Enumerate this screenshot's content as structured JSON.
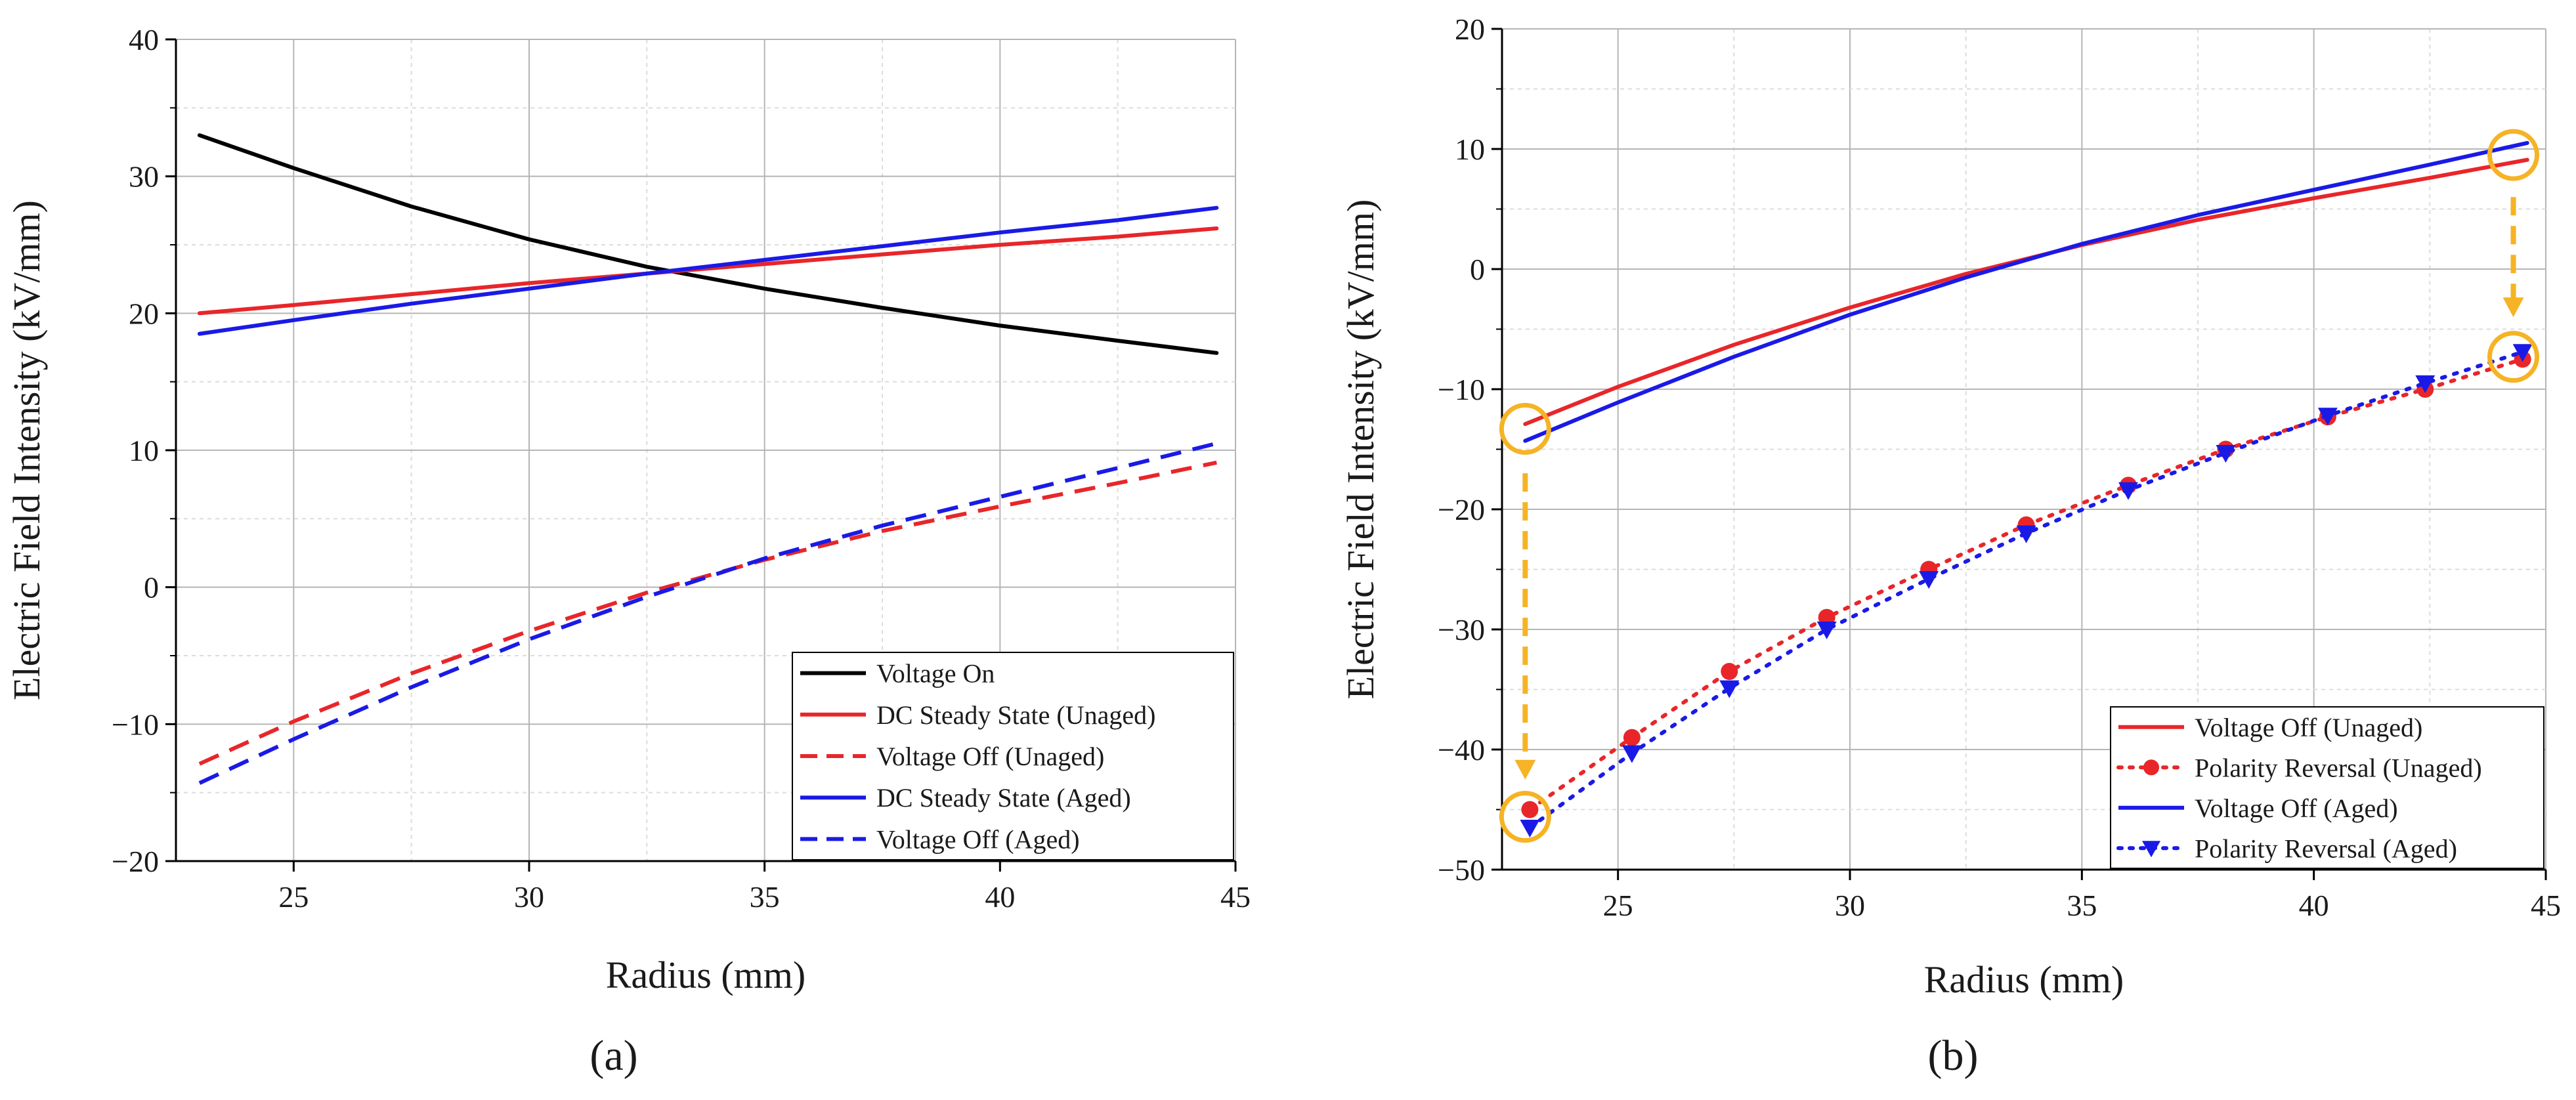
{
  "chart_data": [
    {
      "type": "line",
      "panel_label": "(a)",
      "xlabel": "Radius (mm)",
      "ylabel": "Electric Field Intensity (kV/mm)",
      "xlim": [
        22.5,
        45
      ],
      "ylim": [
        -20,
        40
      ],
      "xticks": [
        25,
        30,
        35,
        40,
        45
      ],
      "yticks": [
        -20,
        -10,
        0,
        10,
        20,
        30,
        40
      ],
      "grid": true,
      "legend_position": "bottom-right",
      "series": [
        {
          "name": "Voltage On",
          "color": "#000000",
          "dash": "solid",
          "x": [
            23,
            25,
            27.5,
            30,
            32.5,
            35,
            37.5,
            40,
            42.5,
            44.6
          ],
          "y": [
            33,
            30.6,
            27.8,
            25.4,
            23.4,
            21.8,
            20.4,
            19.1,
            18.0,
            17.1
          ]
        },
        {
          "name": "DC Steady State (Unaged)",
          "color": "#e8262a",
          "dash": "solid",
          "x": [
            23,
            25,
            27.5,
            30,
            32.5,
            35,
            37.5,
            40,
            42.5,
            44.6
          ],
          "y": [
            20,
            20.6,
            21.4,
            22.2,
            22.9,
            23.6,
            24.3,
            25.0,
            25.6,
            26.2
          ]
        },
        {
          "name": "Voltage Off (Unaged)",
          "color": "#e8262a",
          "dash": "dashed",
          "x": [
            23,
            25,
            27.5,
            30,
            32.5,
            35,
            37.5,
            40,
            42.5,
            44.6
          ],
          "y": [
            -12.9,
            -9.8,
            -6.3,
            -3.2,
            -0.4,
            2.0,
            4.1,
            5.9,
            7.6,
            9.1
          ]
        },
        {
          "name": "DC Steady State (Aged)",
          "color": "#1a1ae6",
          "dash": "solid",
          "x": [
            23,
            25,
            27.5,
            30,
            32.5,
            35,
            37.5,
            40,
            42.5,
            44.6
          ],
          "y": [
            18.5,
            19.5,
            20.7,
            21.8,
            22.9,
            23.9,
            24.9,
            25.9,
            26.8,
            27.7
          ]
        },
        {
          "name": "Voltage Off (Aged)",
          "color": "#1a1ae6",
          "dash": "dashed",
          "x": [
            23,
            25,
            27.5,
            30,
            32.5,
            35,
            37.5,
            40,
            42.5,
            44.6
          ],
          "y": [
            -14.3,
            -11.1,
            -7.3,
            -3.8,
            -0.7,
            2.1,
            4.5,
            6.6,
            8.7,
            10.5
          ]
        }
      ]
    },
    {
      "type": "line",
      "panel_label": "(b)",
      "xlabel": "Radius (mm)",
      "ylabel": "Electric Field Intensity (kV/mm)",
      "xlim": [
        22.5,
        45
      ],
      "ylim": [
        -50,
        20
      ],
      "xticks": [
        25,
        30,
        35,
        40,
        45
      ],
      "yticks": [
        -50,
        -40,
        -30,
        -20,
        -10,
        0,
        10,
        20
      ],
      "grid": true,
      "legend_position": "bottom-right",
      "annotations": {
        "arrow_color": "#f5b325",
        "circles": [
          {
            "x": 23.0,
            "y": -13.3
          },
          {
            "x": 23.0,
            "y": -45.6
          },
          {
            "x": 44.3,
            "y": 9.5
          },
          {
            "x": 44.3,
            "y": -7.3
          }
        ],
        "arrows": [
          {
            "from": [
              23.0,
              -17
            ],
            "to": [
              23.0,
              -42.5
            ]
          },
          {
            "from": [
              44.3,
              6
            ],
            "to": [
              44.3,
              -4
            ]
          }
        ]
      },
      "series": [
        {
          "name": "Voltage Off (Unaged)",
          "color": "#e8262a",
          "dash": "solid",
          "marker": "none",
          "x": [
            23,
            25,
            27.5,
            30,
            32.5,
            35,
            37.5,
            40,
            42.5,
            44.6
          ],
          "y": [
            -12.9,
            -9.8,
            -6.3,
            -3.2,
            -0.4,
            2.0,
            4.1,
            5.9,
            7.6,
            9.1
          ]
        },
        {
          "name": "Polarity Reversal (Unaged)",
          "color": "#e8262a",
          "dash": "dotted",
          "marker": "circle",
          "x": [
            23.1,
            25.3,
            27.4,
            29.5,
            31.7,
            33.8,
            36.0,
            38.1,
            40.3,
            42.4,
            44.5
          ],
          "y": [
            -45.0,
            -39.0,
            -33.5,
            -29.0,
            -25.0,
            -21.3,
            -18.0,
            -15.0,
            -12.3,
            -10.0,
            -7.5
          ]
        },
        {
          "name": "Voltage Off (Aged)",
          "color": "#1a1ae6",
          "dash": "solid",
          "marker": "none",
          "x": [
            23,
            25,
            27.5,
            30,
            32.5,
            35,
            37.5,
            40,
            42.5,
            44.6
          ],
          "y": [
            -14.3,
            -11.1,
            -7.3,
            -3.8,
            -0.7,
            2.1,
            4.5,
            6.6,
            8.7,
            10.5
          ]
        },
        {
          "name": "Polarity Reversal (Aged)",
          "color": "#1a1ae6",
          "dash": "dotted",
          "marker": "triangle-down",
          "x": [
            23.1,
            25.3,
            27.4,
            29.5,
            31.7,
            33.8,
            36.0,
            38.1,
            40.3,
            42.4,
            44.5
          ],
          "y": [
            -46.5,
            -40.3,
            -34.9,
            -30.0,
            -25.8,
            -22.0,
            -18.4,
            -15.3,
            -12.2,
            -9.5,
            -6.9
          ]
        }
      ]
    }
  ]
}
